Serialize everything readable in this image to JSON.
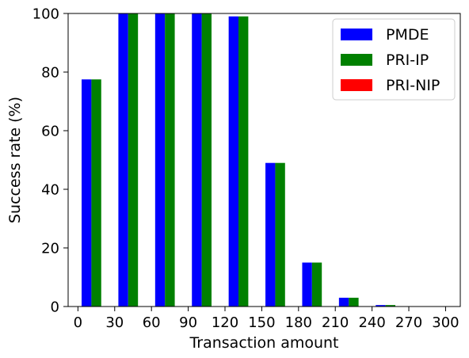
{
  "chart_data": {
    "type": "bar",
    "title": "",
    "xlabel": "Transaction amount",
    "ylabel": "Success rate (%)",
    "xlim": [
      -8,
      312
    ],
    "ylim": [
      0,
      100
    ],
    "xticks": [
      0,
      30,
      60,
      90,
      120,
      150,
      180,
      210,
      240,
      270,
      300
    ],
    "xtick_labels": [
      "0",
      "30",
      "60",
      "90",
      "120",
      "150",
      "180",
      "210",
      "240",
      "270",
      "300"
    ],
    "yticks": [
      0,
      20,
      40,
      60,
      80,
      100
    ],
    "ytick_labels": [
      "0",
      "20",
      "40",
      "60",
      "80",
      "100"
    ],
    "bar_width": 8,
    "grid": false,
    "legend_position": "top-right",
    "x": [
      7,
      37,
      67,
      97,
      127,
      157,
      187,
      217,
      247,
      277
    ],
    "series": [
      {
        "name": "PMDE",
        "color": "#0000ff",
        "offset": 0,
        "values": [
          77.5,
          100,
          100,
          100,
          99,
          49,
          15,
          3,
          0.5,
          0
        ]
      },
      {
        "name": "PRI-IP",
        "color": "#008000",
        "offset": 1,
        "values": [
          77.5,
          100,
          100,
          100,
          99,
          49,
          15,
          3,
          0.5,
          0
        ]
      },
      {
        "name": "PRI-NIP",
        "color": "#ff0000",
        "offset": 2,
        "values": [
          0,
          0,
          0,
          0,
          0,
          0,
          0,
          0,
          0,
          0
        ]
      }
    ]
  }
}
